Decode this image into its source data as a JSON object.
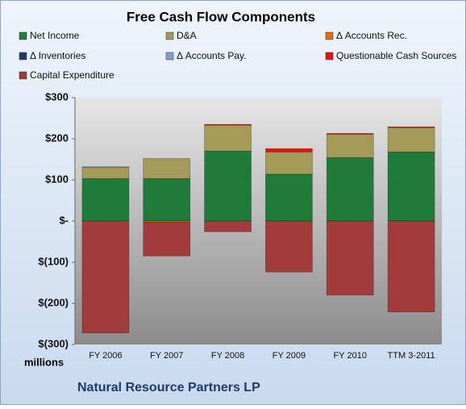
{
  "chart_data": {
    "type": "stacked-bar",
    "title": "Free Cash Flow Components",
    "unit_label": "millions",
    "footer": "Natural Resource Partners LP",
    "categories": [
      "FY 2006",
      "FY 2007",
      "FY 2008",
      "FY 2009",
      "FY 2010",
      "TTM 3-2011"
    ],
    "series": [
      {
        "name": "Net Income",
        "color": "#1e7b3a",
        "values": [
          103,
          103,
          170,
          114,
          154,
          168
        ]
      },
      {
        "name": "D&A",
        "color": "#a39b57",
        "values": [
          27,
          49,
          63,
          54,
          57,
          59
        ]
      },
      {
        "name": "Δ Accounts Rec.",
        "color": "#e46c0a",
        "values": [
          0,
          -3,
          0,
          0,
          0,
          0
        ]
      },
      {
        "name": "Δ Inventories",
        "color": "#1f3864",
        "values": [
          0,
          0,
          0,
          0,
          0,
          0
        ]
      },
      {
        "name": "Δ Accounts Pay.",
        "color": "#7f9fc9",
        "values": [
          2,
          0,
          0,
          0,
          0,
          0
        ]
      },
      {
        "name": "Questionable Cash Sources",
        "color": "#ee1111",
        "values": [
          0,
          0,
          2,
          8,
          2,
          2
        ]
      },
      {
        "name": "Capital Expenditure",
        "color": "#a23b3b",
        "values": [
          -272,
          -82,
          -26,
          -124,
          -180,
          -221
        ]
      }
    ],
    "ylim": [
      -300,
      300
    ],
    "yticks": [
      {
        "value": -300,
        "label": "$(300)"
      },
      {
        "value": -200,
        "label": "$(200)"
      },
      {
        "value": -100,
        "label": "$(100)"
      },
      {
        "value": 0,
        "label": "$-"
      },
      {
        "value": 100,
        "label": "$100"
      },
      {
        "value": 200,
        "label": "$200"
      },
      {
        "value": 300,
        "label": "$300"
      }
    ]
  }
}
